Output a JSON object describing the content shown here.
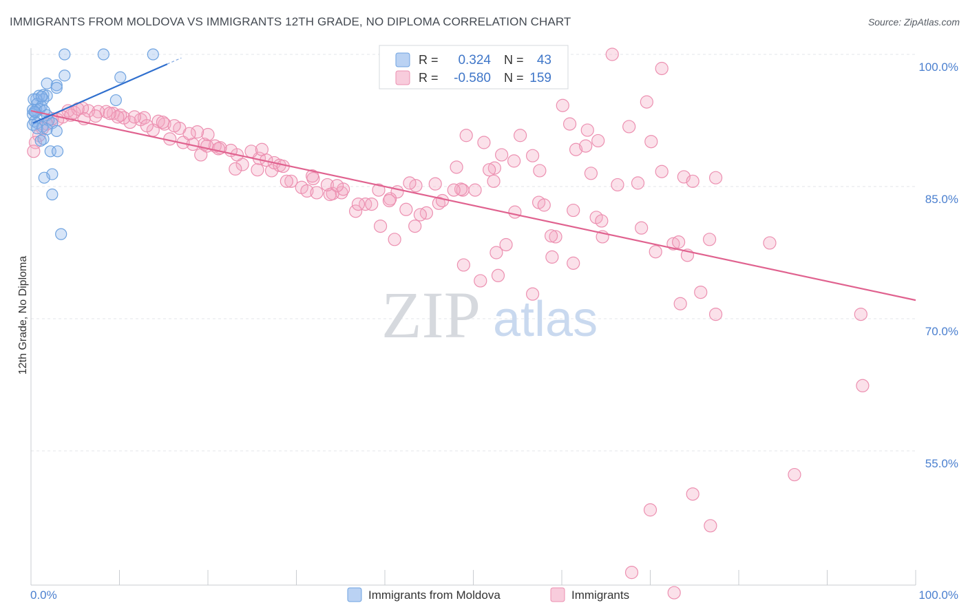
{
  "title": "IMMIGRANTS FROM MOLDOVA VS IMMIGRANTS 12TH GRADE, NO DIPLOMA CORRELATION CHART",
  "source": "Source: ZipAtlas.com",
  "watermark": {
    "zip": "ZIP",
    "atlas": "atlas"
  },
  "colors": {
    "moldova": "#6fa3e0",
    "moldova_fill": "rgba(140,180,235,0.35)",
    "moldova_line": "#2f6fce",
    "immigrants": "#ec8fb0",
    "immigrants_fill": "rgba(244,170,196,0.35)",
    "immigrants_line": "#e0628f",
    "tick_label": "#4a7fcf",
    "grid": "#e3e6ea"
  },
  "legend": {
    "rows": [
      {
        "r_label": "R =",
        "r_value": "0.324",
        "n_label": "N =",
        "n_value": "43"
      },
      {
        "r_label": "R =",
        "r_value": "-0.580",
        "n_label": "N =",
        "n_value": "159"
      }
    ]
  },
  "bottom_legend": {
    "items": [
      "Immigrants from Moldova",
      "Immigrants"
    ]
  },
  "chart_data": {
    "type": "scatter",
    "title": "IMMIGRANTS FROM MOLDOVA VS IMMIGRANTS 12TH GRADE, NO DIPLOMA CORRELATION CHART",
    "xlabel": "",
    "ylabel": "12th Grade, No Diploma",
    "xlim": [
      0,
      100
    ],
    "ylim": [
      40,
      101.5
    ],
    "x_tick_labels": [
      "0.0%",
      "100.0%"
    ],
    "y_ticks": [
      100,
      85,
      70,
      55
    ],
    "y_tick_labels": [
      "100.0%",
      "85.0%",
      "70.0%",
      "55.0%"
    ],
    "grid": true,
    "legend_placement": "top-center",
    "series": [
      {
        "name": "Immigrants from Moldova",
        "r": 0.324,
        "n": 43,
        "trend": {
          "x": [
            0.2,
            15.4
          ],
          "y": [
            92.2,
            98.9
          ]
        },
        "trend_dashed": {
          "x": [
            15.4,
            17.0
          ],
          "y": [
            98.9,
            99.6
          ]
        },
        "points": [
          [
            3.8,
            100.0
          ],
          [
            8.2,
            100.0
          ],
          [
            13.8,
            100.0
          ],
          [
            3.8,
            97.6
          ],
          [
            10.1,
            97.4
          ],
          [
            2.9,
            96.5
          ],
          [
            1.8,
            96.7
          ],
          [
            1.4,
            95.4
          ],
          [
            0.9,
            95.3
          ],
          [
            1.8,
            95.3
          ],
          [
            1.4,
            94.9
          ],
          [
            0.6,
            94.9
          ],
          [
            9.6,
            94.8
          ],
          [
            0.3,
            94.9
          ],
          [
            0.7,
            94.4
          ],
          [
            1.2,
            94.1
          ],
          [
            0.6,
            93.7
          ],
          [
            0.2,
            93.7
          ],
          [
            1.0,
            93.8
          ],
          [
            1.5,
            93.6
          ],
          [
            0.5,
            93.4
          ],
          [
            0.2,
            93.2
          ],
          [
            1.8,
            93.1
          ],
          [
            2.0,
            92.5
          ],
          [
            0.4,
            92.4
          ],
          [
            0.7,
            92.2
          ],
          [
            0.2,
            92.0
          ],
          [
            2.4,
            92.2
          ],
          [
            1.3,
            91.8
          ],
          [
            0.7,
            91.6
          ],
          [
            1.8,
            91.5
          ],
          [
            2.9,
            91.3
          ],
          [
            1.4,
            90.4
          ],
          [
            1.1,
            90.2
          ],
          [
            2.2,
            89.0
          ],
          [
            3.0,
            89.0
          ],
          [
            2.4,
            86.4
          ],
          [
            1.5,
            86.0
          ],
          [
            2.4,
            84.1
          ],
          [
            3.4,
            79.6
          ],
          [
            2.9,
            96.2
          ],
          [
            1.2,
            95.2
          ],
          [
            0.4,
            93.5
          ]
        ]
      },
      {
        "name": "Immigrants",
        "r": -0.58,
        "n": 159,
        "trend": {
          "x": [
            0,
            100
          ],
          "y": [
            93.6,
            72.1
          ]
        },
        "points": [
          [
            65.7,
            100.0
          ],
          [
            71.3,
            98.4
          ],
          [
            69.6,
            94.6
          ],
          [
            60.1,
            94.2
          ],
          [
            67.6,
            91.8
          ],
          [
            60.9,
            92.1
          ],
          [
            62.9,
            91.4
          ],
          [
            49.2,
            90.8
          ],
          [
            55.3,
            90.8
          ],
          [
            70.1,
            90.1
          ],
          [
            51.2,
            90.0
          ],
          [
            64.1,
            90.2
          ],
          [
            61.6,
            89.2
          ],
          [
            62.7,
            89.6
          ],
          [
            56.7,
            88.5
          ],
          [
            53.2,
            88.6
          ],
          [
            54.6,
            87.9
          ],
          [
            48.1,
            87.2
          ],
          [
            52.4,
            87.1
          ],
          [
            51.8,
            86.9
          ],
          [
            57.5,
            86.8
          ],
          [
            71.3,
            86.7
          ],
          [
            73.8,
            86.1
          ],
          [
            63.3,
            86.5
          ],
          [
            77.4,
            86.0
          ],
          [
            74.8,
            85.6
          ],
          [
            68.6,
            85.4
          ],
          [
            66.3,
            85.2
          ],
          [
            52.3,
            85.6
          ],
          [
            48.8,
            84.6
          ],
          [
            48.6,
            84.7
          ],
          [
            45.7,
            85.3
          ],
          [
            43.5,
            85.1
          ],
          [
            42.8,
            85.4
          ],
          [
            41.4,
            84.4
          ],
          [
            40.6,
            83.6
          ],
          [
            46.1,
            83.1
          ],
          [
            47.8,
            84.6
          ],
          [
            50.2,
            84.6
          ],
          [
            57.4,
            83.2
          ],
          [
            58.0,
            82.9
          ],
          [
            61.3,
            82.3
          ],
          [
            63.9,
            81.5
          ],
          [
            64.5,
            81.1
          ],
          [
            54.7,
            82.1
          ],
          [
            44.7,
            82.0
          ],
          [
            44.0,
            81.8
          ],
          [
            43.4,
            80.5
          ],
          [
            41.1,
            79.0
          ],
          [
            42.4,
            82.4
          ],
          [
            46.5,
            83.4
          ],
          [
            59.3,
            79.3
          ],
          [
            58.8,
            79.4
          ],
          [
            53.7,
            78.4
          ],
          [
            52.6,
            77.5
          ],
          [
            58.9,
            77.0
          ],
          [
            61.3,
            76.3
          ],
          [
            64.6,
            79.3
          ],
          [
            69.0,
            80.3
          ],
          [
            72.6,
            78.5
          ],
          [
            73.2,
            78.7
          ],
          [
            76.7,
            79.0
          ],
          [
            70.6,
            77.6
          ],
          [
            74.2,
            77.2
          ],
          [
            83.5,
            78.6
          ],
          [
            75.7,
            73.0
          ],
          [
            73.4,
            71.7
          ],
          [
            77.4,
            70.5
          ],
          [
            93.8,
            70.5
          ],
          [
            94.0,
            62.4
          ],
          [
            86.3,
            52.3
          ],
          [
            74.8,
            50.1
          ],
          [
            70.0,
            48.3
          ],
          [
            76.8,
            46.5
          ],
          [
            67.9,
            41.2
          ],
          [
            72.7,
            38.9
          ],
          [
            52.8,
            74.9
          ],
          [
            56.7,
            72.8
          ],
          [
            50.8,
            74.3
          ],
          [
            48.9,
            76.1
          ],
          [
            39.5,
            80.5
          ],
          [
            37.8,
            83.0
          ],
          [
            36.7,
            82.2
          ],
          [
            35.1,
            84.3
          ],
          [
            34.1,
            84.2
          ],
          [
            33.8,
            84.1
          ],
          [
            37.0,
            83.0
          ],
          [
            39.3,
            84.6
          ],
          [
            40.5,
            83.4
          ],
          [
            38.5,
            83.0
          ],
          [
            30.6,
            84.9
          ],
          [
            31.2,
            84.5
          ],
          [
            32.3,
            84.3
          ],
          [
            29.4,
            85.6
          ],
          [
            28.9,
            85.6
          ],
          [
            31.9,
            85.9
          ],
          [
            33.5,
            85.2
          ],
          [
            35.3,
            84.7
          ],
          [
            27.2,
            86.8
          ],
          [
            25.6,
            86.9
          ],
          [
            23.9,
            87.5
          ],
          [
            23.3,
            88.6
          ],
          [
            25.8,
            88.2
          ],
          [
            27.5,
            87.7
          ],
          [
            28.1,
            87.4
          ],
          [
            24.9,
            89.0
          ],
          [
            26.1,
            89.2
          ],
          [
            22.6,
            89.1
          ],
          [
            21.4,
            89.4
          ],
          [
            20.8,
            89.6
          ],
          [
            19.6,
            89.8
          ],
          [
            18.3,
            89.8
          ],
          [
            17.2,
            90.0
          ],
          [
            15.7,
            90.4
          ],
          [
            19.2,
            88.6
          ],
          [
            21.2,
            89.3
          ],
          [
            20.0,
            90.9
          ],
          [
            18.8,
            91.2
          ],
          [
            17.9,
            91.0
          ],
          [
            16.8,
            91.6
          ],
          [
            15.1,
            92.1
          ],
          [
            14.4,
            92.4
          ],
          [
            13.8,
            91.4
          ],
          [
            12.4,
            92.6
          ],
          [
            11.2,
            92.3
          ],
          [
            10.5,
            92.8
          ],
          [
            9.3,
            93.3
          ],
          [
            8.5,
            93.5
          ],
          [
            7.6,
            93.5
          ],
          [
            6.5,
            93.6
          ],
          [
            5.8,
            93.9
          ],
          [
            4.9,
            93.4
          ],
          [
            4.2,
            93.6
          ],
          [
            3.6,
            92.9
          ],
          [
            3.0,
            92.6
          ],
          [
            2.4,
            92.7
          ],
          [
            1.8,
            92.1
          ],
          [
            1.3,
            91.6
          ],
          [
            0.9,
            90.8
          ],
          [
            0.5,
            90.0
          ],
          [
            0.3,
            89.0
          ],
          [
            12.8,
            92.8
          ],
          [
            14.9,
            92.3
          ],
          [
            16.2,
            91.9
          ],
          [
            11.7,
            92.9
          ],
          [
            10.1,
            93.1
          ],
          [
            9.8,
            92.9
          ],
          [
            8.9,
            93.3
          ],
          [
            7.3,
            93.0
          ],
          [
            6.0,
            92.7
          ],
          [
            5.3,
            93.8
          ],
          [
            4.5,
            93.1
          ],
          [
            13.1,
            91.9
          ],
          [
            19.9,
            89.6
          ],
          [
            23.1,
            87.0
          ],
          [
            26.6,
            88.0
          ],
          [
            28.5,
            87.3
          ],
          [
            31.8,
            86.2
          ],
          [
            34.6,
            85.1
          ]
        ]
      }
    ]
  }
}
